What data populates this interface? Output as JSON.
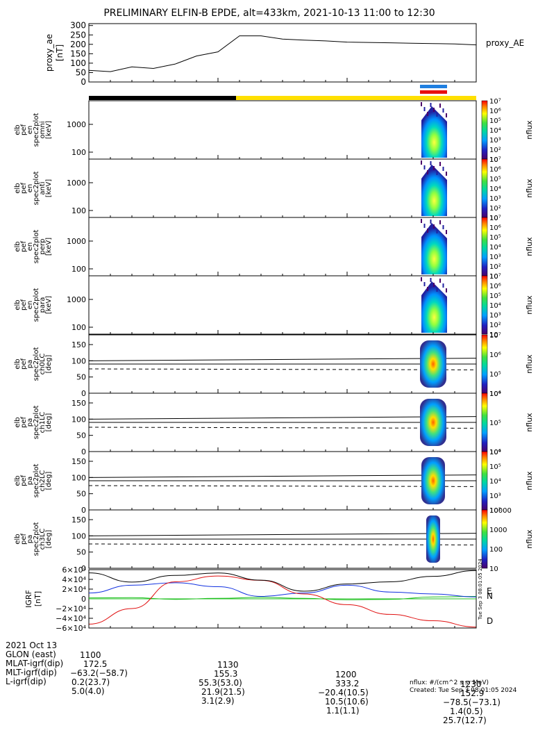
{
  "title": "PRELIMINARY ELFIN-B EPDE, alt=433km, 2021-10-13 11:00 to 12:30",
  "ae_panel": {
    "ylabel": "proxy_ae\n[nT]",
    "legend": "proxy_AE",
    "yticks": [
      "0",
      "50",
      "100",
      "150",
      "200",
      "250",
      "300"
    ],
    "ylim": [
      0,
      310
    ]
  },
  "bars": {
    "black": "#000000",
    "yellow": "#ffe000",
    "blue": "#1f7fe0",
    "red": "#e81010"
  },
  "spec_panels": [
    {
      "ylabel": [
        "elb",
        "pef",
        "en",
        "spec2plot",
        "omni",
        "[keV]"
      ],
      "yticks": [
        "100",
        "1000"
      ],
      "cbar_label": "nflux",
      "cbar_ticks": [
        "10",
        "10²",
        "10³",
        "10⁴",
        "10⁵",
        "10⁶",
        "10⁷"
      ]
    },
    {
      "ylabel": [
        "elb",
        "pef",
        "en",
        "spec2plot",
        "anti",
        "[keV]"
      ],
      "yticks": [
        "100",
        "1000"
      ],
      "cbar_label": "nflux",
      "cbar_ticks": [
        "10",
        "10²",
        "10³",
        "10⁴",
        "10⁵",
        "10⁶",
        "10⁷"
      ]
    },
    {
      "ylabel": [
        "elb",
        "pef",
        "en",
        "spec2plot",
        "perp",
        "[keV]"
      ],
      "yticks": [
        "100",
        "1000"
      ],
      "cbar_label": "nflux",
      "cbar_ticks": [
        "10",
        "10²",
        "10³",
        "10⁴",
        "10⁵",
        "10⁶",
        "10⁷"
      ]
    },
    {
      "ylabel": [
        "elb",
        "pef",
        "en",
        "spec2plot",
        "para",
        "[keV]"
      ],
      "yticks": [
        "100",
        "1000"
      ],
      "cbar_label": "nflux",
      "cbar_ticks": [
        "10",
        "10²",
        "10³",
        "10⁴",
        "10⁵",
        "10⁶",
        "10⁷"
      ]
    }
  ],
  "pa_panels": [
    {
      "ylabel": [
        "elb",
        "pef",
        "pa",
        "spec2plot",
        "ch0LC",
        "[deg]"
      ],
      "yticks": [
        "0",
        "50",
        "100",
        "150"
      ],
      "cbar_label": "nflux",
      "cbar_ticks": [
        "10⁴",
        "10⁵",
        "10⁶",
        "10⁷"
      ]
    },
    {
      "ylabel": [
        "elb",
        "pef",
        "pa",
        "spec2plot",
        "ch1LC",
        "[deg]"
      ],
      "yticks": [
        "0",
        "50",
        "100",
        "150"
      ],
      "cbar_label": "nflux",
      "cbar_ticks": [
        "10⁴",
        "10⁵",
        "10⁶"
      ]
    },
    {
      "ylabel": [
        "elb",
        "pef",
        "pa",
        "spec2plot",
        "ch2LC",
        "[deg]"
      ],
      "yticks": [
        "0",
        "50",
        "100",
        "150"
      ],
      "cbar_label": "nflux",
      "cbar_ticks": [
        "10²",
        "10³",
        "10⁴",
        "10⁵",
        "10⁶"
      ]
    },
    {
      "ylabel": [
        "elb",
        "pef",
        "pa",
        "spec2plot",
        "ch3LC",
        "[deg]"
      ],
      "yticks": [
        "0",
        "50",
        "100",
        "150"
      ],
      "cbar_label": "nflux",
      "cbar_ticks": [
        "10",
        "100",
        "1000",
        "10000"
      ]
    }
  ],
  "igrf_panel": {
    "ylabel": [
      "IGRF",
      "[nT]"
    ],
    "yticks": [
      "−6×10⁴",
      "−4×10⁴",
      "−2×10⁴",
      "0",
      "2×10⁴",
      "4×10⁴",
      "6×10⁴"
    ],
    "legend": [
      "E",
      "N",
      "D"
    ],
    "legend_colors": [
      "#20c020",
      "#1030e0",
      "#e01010"
    ],
    "ylim": [
      -60000,
      60000
    ],
    "side_stamp": "Tue Sep  3 08:01:05 2024"
  },
  "chart_data": [
    {
      "type": "line",
      "title": "proxy_AE",
      "ylabel": "proxy_ae [nT]",
      "x_minutes": [
        0,
        5,
        10,
        15,
        20,
        25,
        30,
        35,
        40,
        45,
        50,
        55,
        60,
        65,
        70,
        75,
        80,
        85,
        90
      ],
      "series": [
        {
          "name": "proxy_AE",
          "values": [
            62,
            55,
            80,
            72,
            95,
            138,
            160,
            245,
            245,
            228,
            222,
            218,
            212,
            210,
            208,
            206,
            204,
            202,
            197
          ]
        }
      ],
      "ylim": [
        0,
        310
      ]
    },
    {
      "type": "line",
      "title": "IGRF",
      "ylabel": "IGRF [nT]",
      "x_minutes": [
        0,
        10,
        20,
        30,
        40,
        50,
        60,
        70,
        80,
        90
      ],
      "series": [
        {
          "name": "E",
          "values": [
            2000,
            2500,
            -1000,
            1000,
            3000,
            1000,
            -2000,
            -1000,
            4000,
            5000
          ]
        },
        {
          "name": "N",
          "values": [
            12000,
            28000,
            33000,
            25000,
            5000,
            12000,
            28000,
            14000,
            10000,
            4000
          ]
        },
        {
          "name": "D",
          "values": [
            -52000,
            -20000,
            35000,
            47000,
            38000,
            10000,
            -12000,
            -32000,
            -45000,
            -58000
          ]
        }
      ],
      "ylim": [
        -60000,
        60000
      ]
    }
  ],
  "time_ticks": [
    "1100",
    "1130",
    "1200",
    "1230"
  ],
  "footer": [
    {
      "label": "2021 Oct 13",
      "values": [
        "1100",
        "1130",
        "1200",
        "1230"
      ]
    },
    {
      "label": "GLON (east)",
      "values": [
        "172.5",
        "155.3",
        "333.2",
        "152.9"
      ]
    },
    {
      "label": "MLAT-igrf(dip)",
      "values": [
        "−63.2(−58.7)",
        "55.3(53.0)",
        "−20.4(10.5)",
        "−78.5(−73.1)"
      ]
    },
    {
      "label": "MLT-igrf(dip)",
      "values": [
        "0.2(23.7)",
        "21.9(21.5)",
        "10.5(10.6)",
        "1.4(0.5)"
      ]
    },
    {
      "label": "L-igrf(dip)",
      "values": [
        "5.0(4.0)",
        "3.1(2.9)",
        "1.1(1.1)",
        "25.7(12.7)"
      ]
    }
  ],
  "credits": {
    "units": "nflux: #/(cm^2 s sr MeV)",
    "created": "Created: Tue Sep  3 08:01:05 2024"
  }
}
